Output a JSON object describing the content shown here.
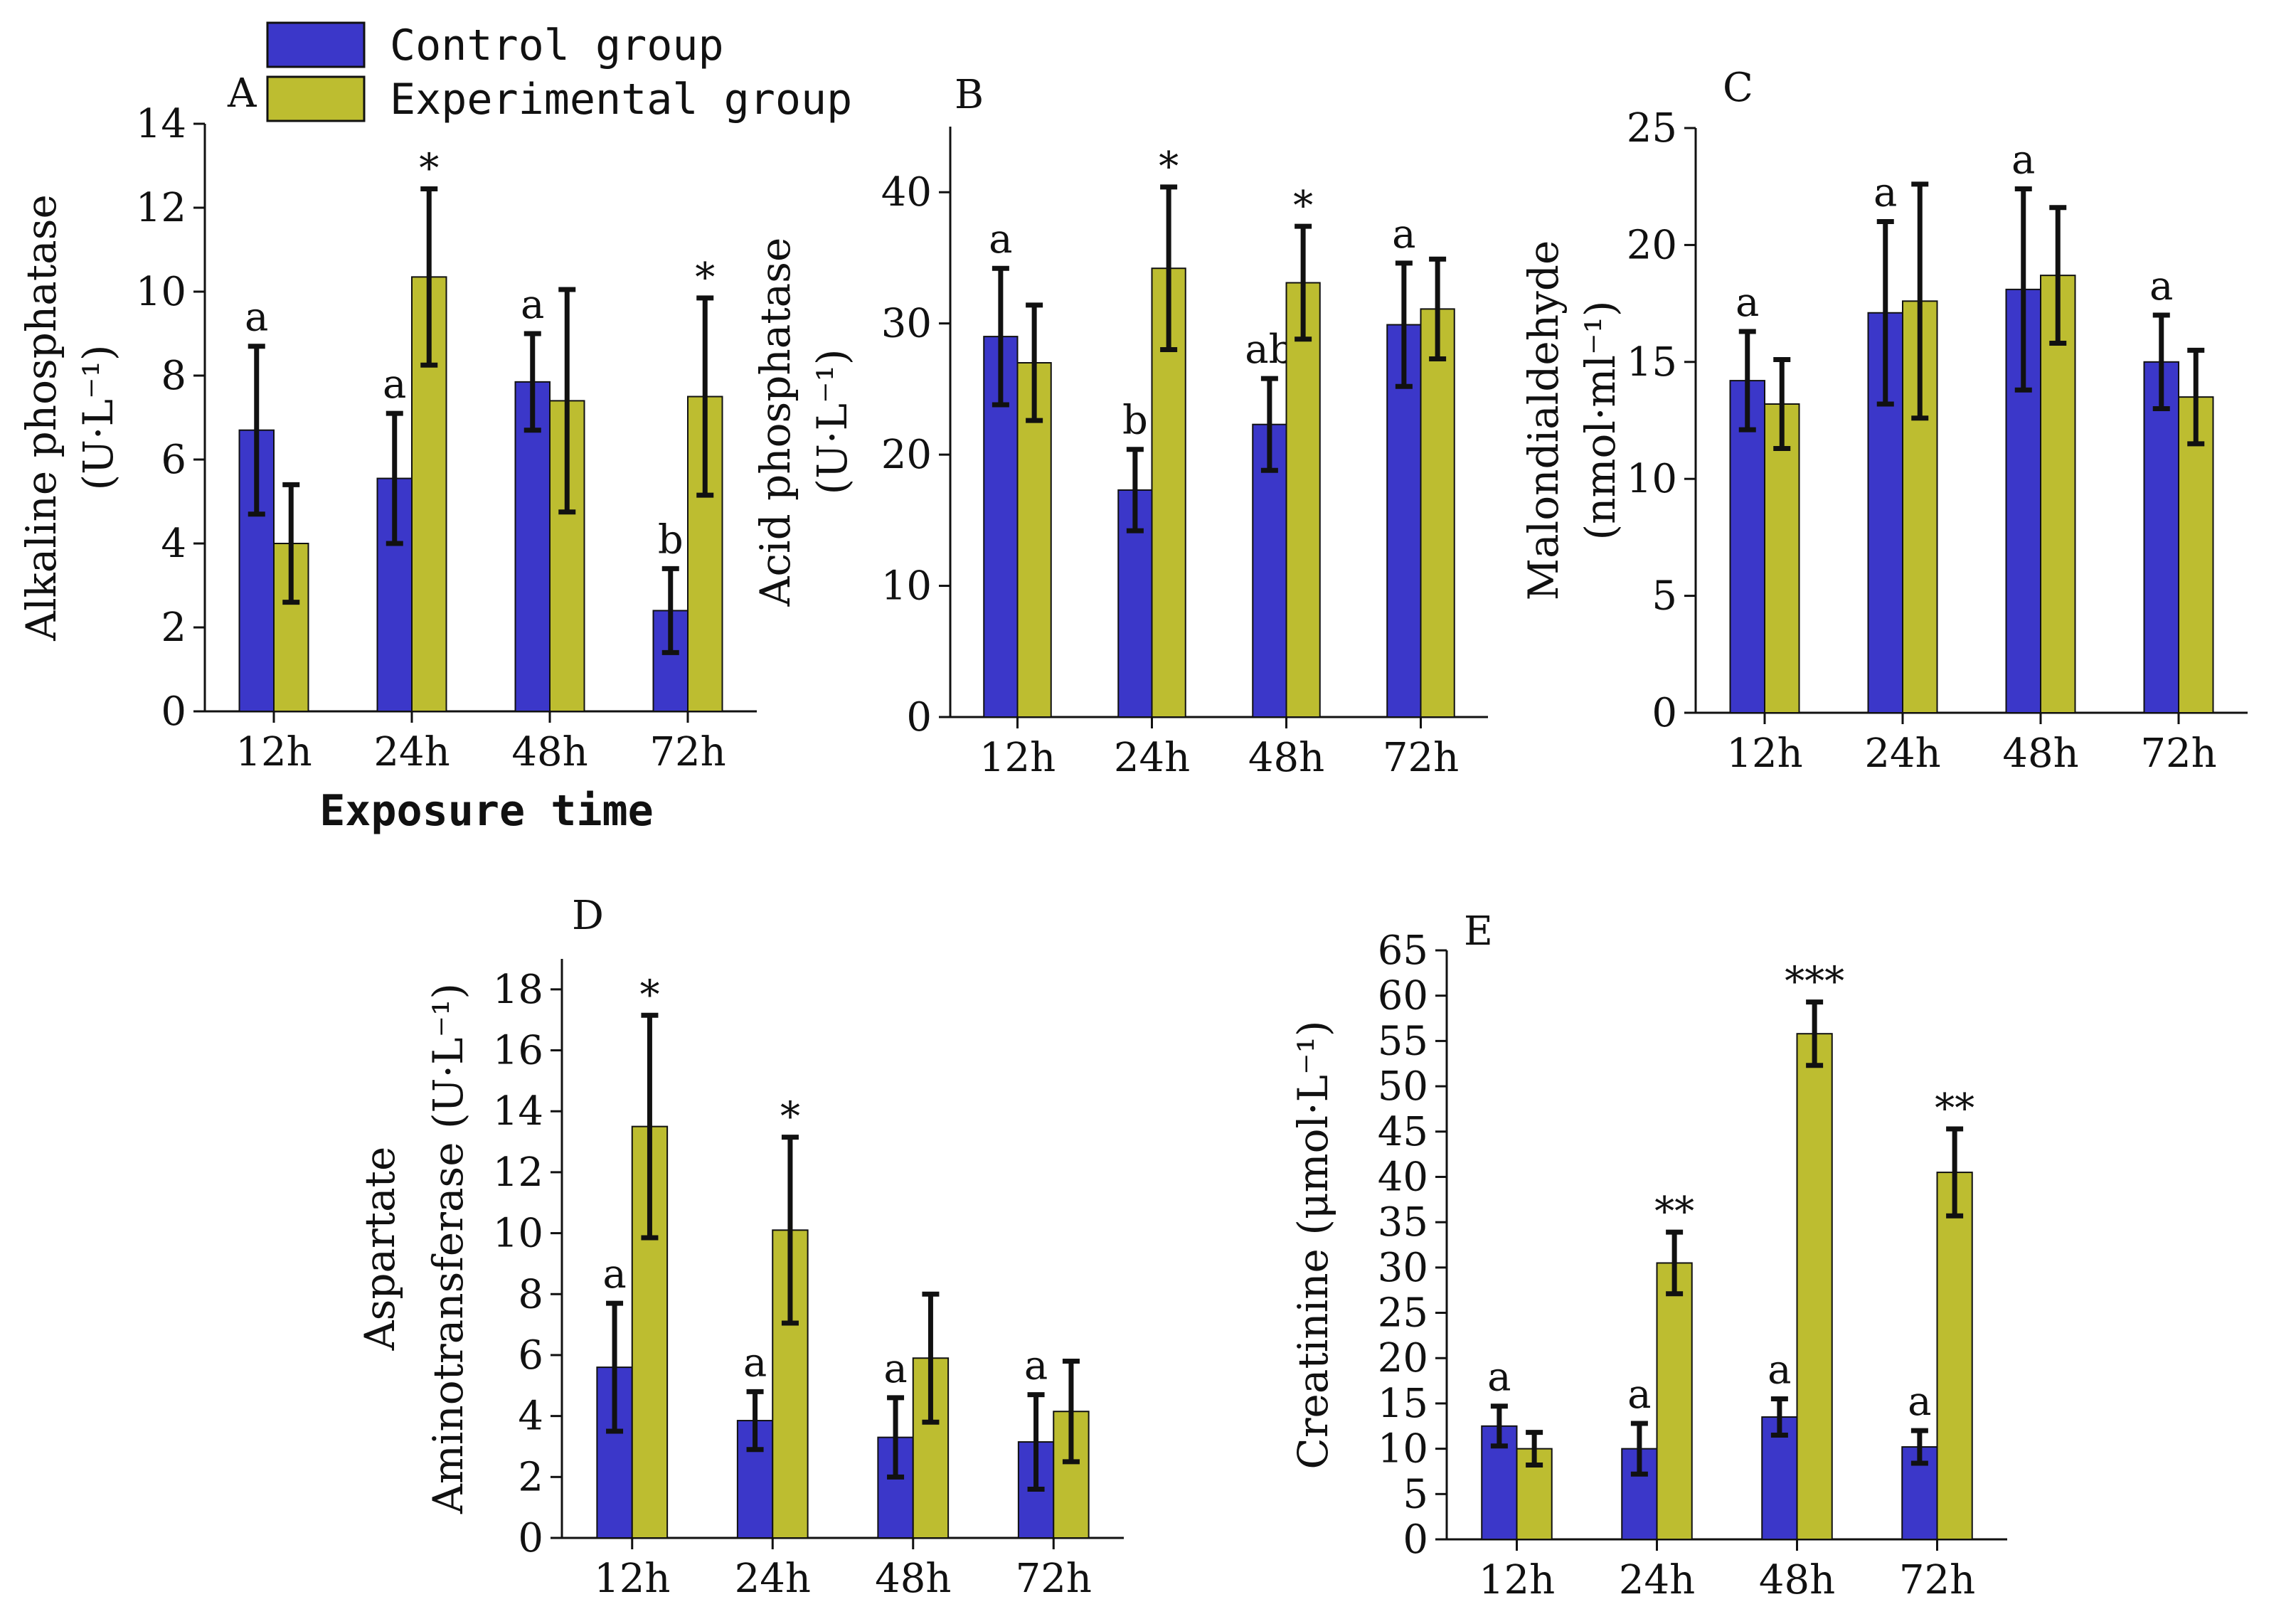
{
  "legend": {
    "control_label": "Control group",
    "experimental_label": "Experimental group"
  },
  "colors": {
    "control": "#3b37c9",
    "experimental": "#bdbd30",
    "error_bar": "#111111",
    "axis": "#111111"
  },
  "x_axis_title": "Exposure time",
  "chart_data": [
    {
      "panel": "A",
      "type": "bar",
      "ylabel_line1": "Alkaline phosphatase",
      "ylabel_line2": "(U·L⁻¹)",
      "categories": [
        "12h",
        "24h",
        "48h",
        "72h"
      ],
      "ylim": [
        0,
        14
      ],
      "yticks": [
        0,
        2,
        4,
        6,
        8,
        10,
        12,
        14
      ],
      "series": [
        {
          "name": "Control group",
          "values": [
            6.7,
            5.55,
            7.85,
            2.4
          ],
          "errors": [
            2.0,
            1.55,
            1.15,
            1.0
          ],
          "labels": [
            "a",
            "a",
            "a",
            "b"
          ]
        },
        {
          "name": "Experimental group",
          "values": [
            4.0,
            10.35,
            7.4,
            7.5
          ],
          "errors": [
            1.4,
            2.1,
            2.65,
            2.35
          ],
          "labels": [
            "",
            "*",
            "",
            "*"
          ]
        }
      ]
    },
    {
      "panel": "B",
      "type": "bar",
      "ylabel_line1": "Acid phosphatase",
      "ylabel_line2": "(U·L⁻¹)",
      "categories": [
        "12h",
        "24h",
        "48h",
        "72h"
      ],
      "ylim": [
        0,
        45
      ],
      "yticks": [
        0,
        10,
        20,
        30,
        40
      ],
      "series": [
        {
          "name": "Control group",
          "values": [
            29.0,
            17.3,
            22.3,
            29.9
          ],
          "errors": [
            5.2,
            3.1,
            3.5,
            4.7
          ],
          "labels": [
            "a",
            "b",
            "ab",
            "a"
          ]
        },
        {
          "name": "Experimental group",
          "values": [
            27.0,
            34.2,
            33.1,
            31.1
          ],
          "errors": [
            4.4,
            6.2,
            4.3,
            3.8
          ],
          "labels": [
            "",
            "*",
            "*",
            ""
          ]
        }
      ]
    },
    {
      "panel": "C",
      "type": "bar",
      "ylabel_line1": "Malondialdehyde",
      "ylabel_line2": "(nmol·ml⁻¹)",
      "categories": [
        "12h",
        "24h",
        "48h",
        "72h"
      ],
      "ylim": [
        0,
        25
      ],
      "yticks": [
        0,
        5,
        10,
        15,
        20,
        25
      ],
      "series": [
        {
          "name": "Control group",
          "values": [
            14.2,
            17.1,
            18.1,
            15.0
          ],
          "errors": [
            2.1,
            3.9,
            4.3,
            2.0
          ],
          "labels": [
            "a",
            "a",
            "a",
            "a"
          ]
        },
        {
          "name": "Experimental group",
          "values": [
            13.2,
            17.6,
            18.7,
            13.5
          ],
          "errors": [
            1.9,
            5.0,
            2.9,
            2.0
          ],
          "labels": [
            "",
            "",
            "",
            ""
          ]
        }
      ]
    },
    {
      "panel": "D",
      "type": "bar",
      "ylabel_line1": "Aspartate",
      "ylabel_line2": "Aminotransferase (U·L⁻¹)",
      "categories": [
        "12h",
        "24h",
        "48h",
        "72h"
      ],
      "ylim": [
        0,
        19
      ],
      "yticks": [
        0,
        2,
        4,
        6,
        8,
        10,
        12,
        14,
        16,
        18
      ],
      "series": [
        {
          "name": "Control group",
          "values": [
            5.6,
            3.85,
            3.3,
            3.15
          ],
          "errors": [
            2.1,
            0.95,
            1.3,
            1.55
          ],
          "labels": [
            "a",
            "a",
            "a",
            "a"
          ]
        },
        {
          "name": "Experimental group",
          "values": [
            13.5,
            10.1,
            5.9,
            4.15
          ],
          "errors": [
            3.65,
            3.05,
            2.1,
            1.65
          ],
          "labels": [
            "*",
            "*",
            "",
            ""
          ]
        }
      ]
    },
    {
      "panel": "E",
      "type": "bar",
      "ylabel_line1": "Creatinine (μmol·L⁻¹)",
      "ylabel_line2": "",
      "categories": [
        "12h",
        "24h",
        "48h",
        "72h"
      ],
      "ylim": [
        0,
        65
      ],
      "yticks": [
        0,
        5,
        10,
        15,
        20,
        25,
        30,
        35,
        40,
        45,
        50,
        55,
        60,
        65
      ],
      "series": [
        {
          "name": "Control group",
          "values": [
            12.5,
            10.0,
            13.5,
            10.2
          ],
          "errors": [
            2.2,
            2.8,
            2.0,
            1.8
          ],
          "labels": [
            "a",
            "a",
            "a",
            "a"
          ]
        },
        {
          "name": "Experimental group",
          "values": [
            10.0,
            30.5,
            55.8,
            40.5
          ],
          "errors": [
            1.8,
            3.4,
            3.5,
            4.8
          ],
          "labels": [
            "",
            "**",
            "***",
            "**"
          ]
        }
      ]
    }
  ]
}
